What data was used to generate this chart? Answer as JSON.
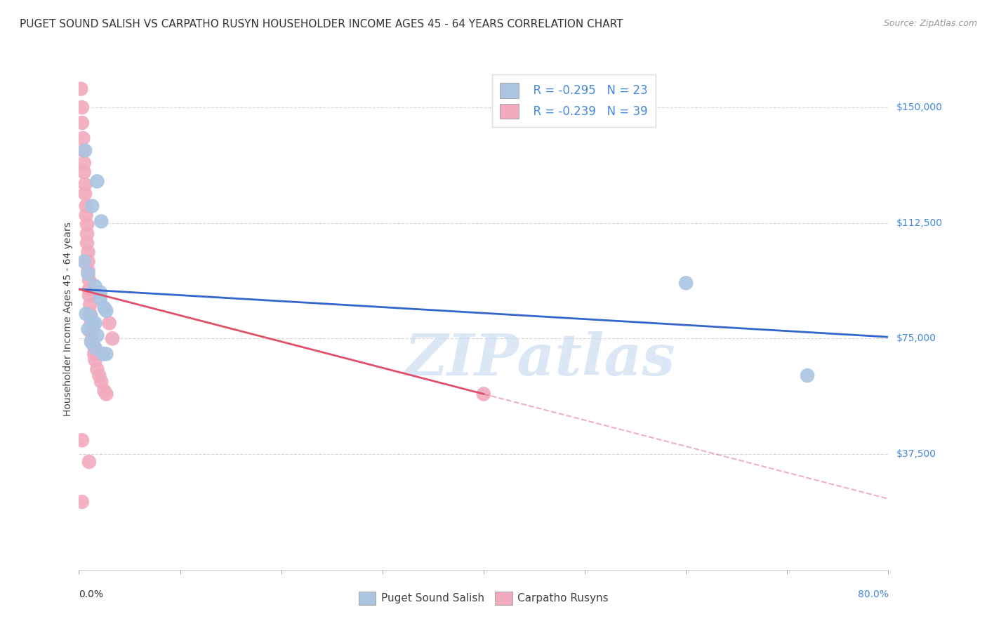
{
  "title": "PUGET SOUND SALISH VS CARPATHO RUSYN HOUSEHOLDER INCOME AGES 45 - 64 YEARS CORRELATION CHART",
  "source": "Source: ZipAtlas.com",
  "ylabel": "Householder Income Ages 45 - 64 years",
  "ytick_labels": [
    "$150,000",
    "$112,500",
    "$75,000",
    "$37,500"
  ],
  "ytick_values": [
    150000,
    112500,
    75000,
    37500
  ],
  "ymin": 0,
  "ymax": 162500,
  "xmin": 0.0,
  "xmax": 0.8,
  "legend_blue_r": "R = -0.295",
  "legend_blue_n": "N = 23",
  "legend_pink_r": "R = -0.239",
  "legend_pink_n": "N = 39",
  "blue_color": "#aac4e2",
  "pink_color": "#f2aabe",
  "blue_line_color": "#3366cc",
  "pink_line_color": "#e0506a",
  "blue_scatter": [
    [
      0.006,
      136000
    ],
    [
      0.018,
      126000
    ],
    [
      0.013,
      118000
    ],
    [
      0.022,
      113000
    ],
    [
      0.005,
      100000
    ],
    [
      0.009,
      96000
    ],
    [
      0.016,
      92000
    ],
    [
      0.021,
      90000
    ],
    [
      0.021,
      88000
    ],
    [
      0.025,
      85000
    ],
    [
      0.027,
      84000
    ],
    [
      0.007,
      83000
    ],
    [
      0.012,
      82000
    ],
    [
      0.014,
      80000
    ],
    [
      0.016,
      80000
    ],
    [
      0.009,
      78000
    ],
    [
      0.018,
      76000
    ],
    [
      0.012,
      74000
    ],
    [
      0.016,
      72000
    ],
    [
      0.024,
      70000
    ],
    [
      0.027,
      70000
    ],
    [
      0.6,
      93000
    ],
    [
      0.72,
      63000
    ]
  ],
  "pink_scatter": [
    [
      0.002,
      156000
    ],
    [
      0.003,
      150000
    ],
    [
      0.003,
      145000
    ],
    [
      0.004,
      140000
    ],
    [
      0.004,
      136000
    ],
    [
      0.005,
      132000
    ],
    [
      0.005,
      129000
    ],
    [
      0.006,
      125000
    ],
    [
      0.006,
      122000
    ],
    [
      0.007,
      118000
    ],
    [
      0.007,
      115000
    ],
    [
      0.008,
      112000
    ],
    [
      0.008,
      109000
    ],
    [
      0.008,
      106000
    ],
    [
      0.009,
      103000
    ],
    [
      0.009,
      100000
    ],
    [
      0.009,
      97000
    ],
    [
      0.01,
      94000
    ],
    [
      0.01,
      91000
    ],
    [
      0.01,
      89000
    ],
    [
      0.011,
      86000
    ],
    [
      0.011,
      83000
    ],
    [
      0.012,
      80000
    ],
    [
      0.012,
      77000
    ],
    [
      0.013,
      75000
    ],
    [
      0.014,
      73000
    ],
    [
      0.015,
      70000
    ],
    [
      0.016,
      68000
    ],
    [
      0.018,
      65000
    ],
    [
      0.02,
      63000
    ],
    [
      0.022,
      61000
    ],
    [
      0.025,
      58000
    ],
    [
      0.03,
      80000
    ],
    [
      0.033,
      75000
    ],
    [
      0.027,
      57000
    ],
    [
      0.4,
      57000
    ],
    [
      0.003,
      42000
    ],
    [
      0.01,
      35000
    ],
    [
      0.003,
      22000
    ]
  ],
  "blue_line": [
    [
      0.0,
      91000
    ],
    [
      0.8,
      75500
    ]
  ],
  "pink_line_solid": [
    [
      0.0,
      91000
    ],
    [
      0.4,
      57000
    ]
  ],
  "pink_line_dash": [
    [
      0.4,
      57000
    ],
    [
      0.8,
      23000
    ]
  ],
  "watermark_text": "ZIPatlas",
  "watermark_color": "#c5d8f0",
  "watermark_alpha": 0.6,
  "title_fontsize": 11,
  "source_fontsize": 9,
  "label_fontsize": 10,
  "legend_fontsize": 12,
  "tick_fontsize": 10,
  "background_color": "#ffffff",
  "grid_color": "#cccccc",
  "title_color": "#333333",
  "axis_label_color": "#444444",
  "ytick_color": "#4488dd",
  "xtick_color": "#333333",
  "bottom_legend_labels": [
    "Puget Sound Salish",
    "Carpatho Rusyns"
  ]
}
